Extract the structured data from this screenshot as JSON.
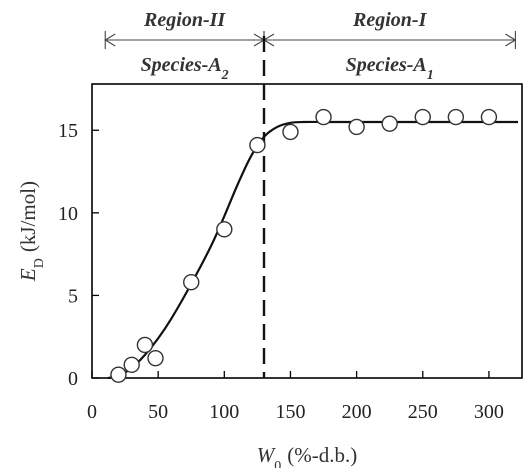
{
  "chart_data": {
    "type": "scatter",
    "xlabel_var": "W",
    "xlabel_sub": "0",
    "xlabel_unit": "(%-d.b.)",
    "ylabel_var": "E",
    "ylabel_sub": "D",
    "ylabel_unit": "(kJ/mol)",
    "xlim": [
      0,
      325
    ],
    "ylim": [
      0,
      17.8
    ],
    "xticks": [
      0,
      50,
      100,
      150,
      200,
      250,
      300
    ],
    "yticks": [
      0,
      5,
      10,
      15
    ],
    "grid": false,
    "legend": "none",
    "vline_x": 130,
    "regions": [
      {
        "name": "Region-II",
        "species_prefix": "Species-A",
        "species_sub": "2",
        "x_from": 10,
        "x_to": 130
      },
      {
        "name": "Region-I",
        "species_prefix": "Species-A",
        "species_sub": "1",
        "x_from": 130,
        "x_to": 320
      }
    ],
    "series": [
      {
        "marker": "open-circle",
        "x": [
          20,
          30,
          40,
          48,
          75,
          100,
          125,
          150,
          175,
          200,
          225,
          250,
          275,
          300
        ],
        "y": [
          0.2,
          0.8,
          2.0,
          1.2,
          5.8,
          9.0,
          14.1,
          14.9,
          15.8,
          15.2,
          15.4,
          15.8,
          15.8,
          15.8
        ]
      }
    ],
    "fit_curve": {
      "x": [
        12,
        20,
        30,
        40,
        50,
        60,
        75,
        90,
        100,
        110,
        120,
        130,
        140,
        150,
        160,
        175,
        200,
        250,
        300,
        322
      ],
      "y": [
        0,
        0.15,
        0.6,
        1.4,
        2.4,
        3.6,
        5.7,
        8.0,
        9.8,
        11.7,
        13.4,
        14.6,
        15.2,
        15.45,
        15.5,
        15.5,
        15.5,
        15.5,
        15.5,
        15.5
      ]
    }
  }
}
